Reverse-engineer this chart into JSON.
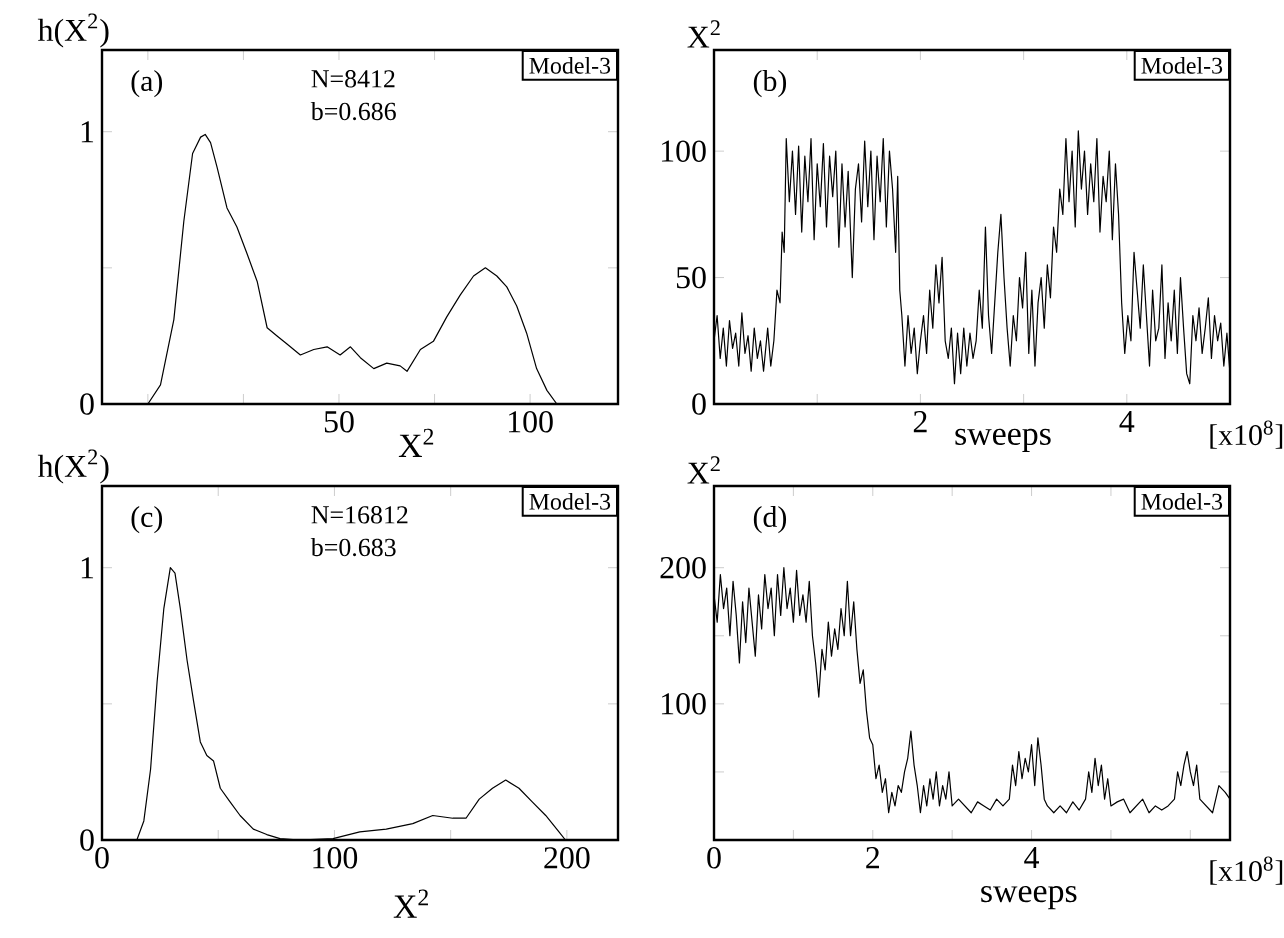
{
  "chart_data": [
    {
      "type": "line",
      "ylabel": "h(X$^{2}$)",
      "xlabel": "X$^{2}$",
      "xlim": [
        -12,
        123
      ],
      "ylim": [
        0,
        1.3
      ],
      "xticks": [
        {
          "value": 0,
          "label": null
        },
        {
          "value": 25,
          "label": null
        },
        50,
        {
          "value": 75,
          "label": null
        },
        100
      ],
      "yticks": [
        0,
        {
          "value": 0.5,
          "label": null
        },
        1
      ],
      "annotations": [
        "(a)",
        "N=8412",
        "b=0.686",
        "Model-3"
      ],
      "series": [
        {
          "color": "#000000",
          "x": [
            0,
            3.3,
            6.8,
            9.4,
            11.7,
            13.8,
            15,
            16.4,
            18.1,
            20.7,
            23.3,
            26,
            28.6,
            31.2,
            33.8,
            36.4,
            39.9,
            43.4,
            46.9,
            50.3,
            53,
            55.6,
            59.1,
            62.5,
            66,
            67.8,
            71.3,
            74.7,
            78.2,
            81.7,
            85.2,
            88.3,
            91.3,
            93.9,
            96.5,
            99.1,
            101.7,
            104.4,
            107
          ],
          "values": [
            0,
            0.07,
            0.31,
            0.67,
            0.92,
            0.98,
            0.99,
            0.96,
            0.87,
            0.72,
            0.65,
            0.55,
            0.45,
            0.28,
            0.25,
            0.22,
            0.18,
            0.2,
            0.21,
            0.18,
            0.21,
            0.17,
            0.13,
            0.15,
            0.14,
            0.12,
            0.2,
            0.23,
            0.32,
            0.4,
            0.47,
            0.5,
            0.47,
            0.43,
            0.36,
            0.26,
            0.13,
            0.05,
            0
          ]
        }
      ]
    },
    {
      "type": "line",
      "ylabel": "X$^{2}$",
      "xlabel": "sweeps",
      "xlim": [
        0,
        5
      ],
      "ylim": [
        0,
        140
      ],
      "xticks": [
        {
          "value": 1,
          "label": null
        },
        2,
        {
          "value": 3,
          "label": null
        },
        4
      ],
      "yticks": [
        0,
        50,
        100
      ],
      "annotations": [
        "(b)",
        "Model-3",
        "[x10$^{8}$]"
      ],
      "series": [
        {
          "color": "#000000",
          "x": [
            0.0,
            0.03,
            0.06,
            0.09,
            0.12,
            0.15,
            0.18,
            0.21,
            0.24,
            0.27,
            0.3,
            0.33,
            0.36,
            0.39,
            0.42,
            0.45,
            0.48,
            0.52,
            0.55,
            0.58,
            0.61,
            0.64,
            0.66,
            0.68,
            0.7,
            0.73,
            0.76,
            0.79,
            0.82,
            0.85,
            0.88,
            0.91,
            0.94,
            0.97,
            1.0,
            1.03,
            1.06,
            1.09,
            1.12,
            1.15,
            1.18,
            1.21,
            1.24,
            1.27,
            1.3,
            1.34,
            1.37,
            1.4,
            1.43,
            1.46,
            1.49,
            1.52,
            1.55,
            1.58,
            1.61,
            1.64,
            1.67,
            1.7,
            1.73,
            1.76,
            1.78,
            1.8,
            1.82,
            1.85,
            1.88,
            1.91,
            1.94,
            1.97,
            2.0,
            2.03,
            2.06,
            2.09,
            2.12,
            2.15,
            2.18,
            2.21,
            2.24,
            2.27,
            2.3,
            2.33,
            2.36,
            2.39,
            2.42,
            2.45,
            2.48,
            2.51,
            2.54,
            2.57,
            2.6,
            2.63,
            2.66,
            2.69,
            2.72,
            2.75,
            2.78,
            2.81,
            2.84,
            2.87,
            2.9,
            2.93,
            2.96,
            2.99,
            3.02,
            3.05,
            3.08,
            3.11,
            3.14,
            3.17,
            3.2,
            3.23,
            3.26,
            3.29,
            3.32,
            3.35,
            3.38,
            3.41,
            3.44,
            3.47,
            3.5,
            3.53,
            3.56,
            3.59,
            3.62,
            3.65,
            3.68,
            3.71,
            3.74,
            3.77,
            3.8,
            3.83,
            3.86,
            3.89,
            3.92,
            3.95,
            3.98,
            4.01,
            4.04,
            4.07,
            4.1,
            4.13,
            4.16,
            4.19,
            4.22,
            4.25,
            4.28,
            4.31,
            4.34,
            4.37,
            4.4,
            4.43,
            4.46,
            4.49,
            4.52,
            4.55,
            4.58,
            4.61,
            4.64,
            4.67,
            4.7,
            4.73,
            4.76,
            4.79,
            4.82,
            4.85,
            4.88,
            4.91,
            4.94,
            4.97,
            5.0
          ],
          "values": [
            25,
            35,
            18,
            30,
            15,
            33,
            22,
            28,
            15,
            36,
            20,
            27,
            13,
            30,
            18,
            25,
            13,
            30,
            15,
            25,
            45,
            40,
            68,
            60,
            105,
            80,
            100,
            75,
            102,
            68,
            98,
            80,
            105,
            65,
            95,
            78,
            103,
            70,
            98,
            82,
            100,
            62,
            95,
            70,
            92,
            50,
            85,
            95,
            72,
            104,
            78,
            100,
            65,
            98,
            80,
            105,
            70,
            100,
            85,
            60,
            90,
            45,
            35,
            15,
            35,
            20,
            30,
            12,
            25,
            35,
            20,
            45,
            30,
            55,
            40,
            58,
            25,
            18,
            30,
            8,
            28,
            12,
            30,
            15,
            28,
            18,
            25,
            45,
            30,
            70,
            35,
            20,
            40,
            60,
            75,
            50,
            30,
            15,
            35,
            25,
            50,
            38,
            60,
            20,
            45,
            15,
            40,
            50,
            30,
            55,
            42,
            70,
            60,
            85,
            75,
            105,
            80,
            100,
            70,
            108,
            85,
            100,
            75,
            95,
            80,
            105,
            68,
            90,
            80,
            100,
            65,
            95,
            75,
            40,
            20,
            35,
            25,
            60,
            45,
            30,
            55,
            35,
            15,
            45,
            25,
            30,
            55,
            18,
            40,
            25,
            45,
            20,
            50,
            30,
            12,
            8,
            35,
            25,
            38,
            20,
            30,
            42,
            18,
            35,
            25,
            32,
            15,
            28,
            12
          ]
        }
      ]
    },
    {
      "type": "line",
      "ylabel": "h(X$^{2}$)",
      "xlabel": "X$^{2}$",
      "xlim": [
        0,
        222
      ],
      "ylim": [
        0,
        1.3
      ],
      "xticks": [
        0,
        {
          "value": 50,
          "label": null
        },
        100,
        {
          "value": 150,
          "label": null
        },
        200
      ],
      "yticks": [
        0,
        {
          "value": 0.5,
          "label": null
        },
        1
      ],
      "annotations": [
        "(c)",
        "N=16812",
        "b=0.683",
        "Model-3"
      ],
      "series": [
        {
          "color": "#000000",
          "x": [
            15,
            18,
            20.9,
            23.7,
            26.6,
            29.4,
            31.4,
            33.7,
            36.6,
            39.4,
            42.3,
            45.1,
            48,
            50.9,
            55.1,
            59.4,
            65.1,
            70.9,
            76.6,
            85,
            99.4,
            110.9,
            122.3,
            133.7,
            142.3,
            150.9,
            156.6,
            162.3,
            168,
            173.7,
            179.4,
            185.1,
            190.9,
            196.6,
            199.4
          ],
          "values": [
            0,
            0.07,
            0.26,
            0.58,
            0.85,
            1.0,
            0.98,
            0.85,
            0.66,
            0.51,
            0.36,
            0.31,
            0.29,
            0.19,
            0.14,
            0.09,
            0.04,
            0.02,
            0.005,
            0,
            0.005,
            0.03,
            0.04,
            0.06,
            0.09,
            0.08,
            0.08,
            0.15,
            0.19,
            0.22,
            0.19,
            0.14,
            0.09,
            0.03,
            0
          ]
        }
      ]
    },
    {
      "type": "line",
      "ylabel": "X$^{2}$",
      "xlabel": "sweeps",
      "xlim": [
        0,
        6.5
      ],
      "ylim": [
        0,
        260
      ],
      "xticks": [
        0,
        {
          "value": 1,
          "label": null
        },
        2,
        {
          "value": 3,
          "label": null
        },
        4,
        {
          "value": 5,
          "label": null
        },
        {
          "value": 6,
          "label": null
        }
      ],
      "yticks": [
        {
          "value": 50,
          "label": null
        },
        100,
        {
          "value": 150,
          "label": null
        },
        200
      ],
      "annotations": [
        "(d)",
        "Model-3",
        "[x10$^{8}$]"
      ],
      "series": [
        {
          "color": "#000000",
          "x": [
            0.0,
            0.04,
            0.08,
            0.12,
            0.16,
            0.2,
            0.24,
            0.28,
            0.32,
            0.36,
            0.4,
            0.44,
            0.48,
            0.52,
            0.56,
            0.6,
            0.64,
            0.68,
            0.72,
            0.76,
            0.8,
            0.84,
            0.88,
            0.92,
            0.96,
            1.0,
            1.04,
            1.08,
            1.12,
            1.16,
            1.2,
            1.24,
            1.28,
            1.32,
            1.36,
            1.4,
            1.44,
            1.48,
            1.52,
            1.56,
            1.6,
            1.64,
            1.68,
            1.72,
            1.76,
            1.8,
            1.84,
            1.88,
            1.92,
            1.96,
            2.0,
            2.04,
            2.08,
            2.12,
            2.16,
            2.2,
            2.24,
            2.28,
            2.32,
            2.36,
            2.4,
            2.44,
            2.48,
            2.52,
            2.56,
            2.6,
            2.64,
            2.68,
            2.72,
            2.76,
            2.8,
            2.84,
            2.88,
            2.92,
            2.96,
            3.0,
            3.08,
            3.16,
            3.24,
            3.32,
            3.4,
            3.48,
            3.56,
            3.64,
            3.72,
            3.76,
            3.8,
            3.84,
            3.88,
            3.92,
            3.96,
            4.0,
            4.04,
            4.08,
            4.12,
            4.16,
            4.2,
            4.28,
            4.36,
            4.44,
            4.52,
            4.6,
            4.68,
            4.72,
            4.76,
            4.8,
            4.84,
            4.88,
            4.92,
            4.96,
            5.0,
            5.08,
            5.16,
            5.24,
            5.32,
            5.4,
            5.48,
            5.56,
            5.64,
            5.72,
            5.8,
            5.84,
            5.88,
            5.92,
            5.96,
            6.0,
            6.04,
            6.08,
            6.12,
            6.2,
            6.28,
            6.36,
            6.44,
            6.5
          ],
          "values": [
            180,
            160,
            195,
            170,
            185,
            150,
            190,
            165,
            130,
            175,
            145,
            185,
            160,
            135,
            180,
            155,
            195,
            170,
            185,
            150,
            195,
            165,
            200,
            170,
            185,
            160,
            198,
            165,
            180,
            160,
            190,
            150,
            130,
            105,
            140,
            125,
            160,
            135,
            155,
            140,
            170,
            150,
            190,
            150,
            175,
            140,
            115,
            125,
            95,
            75,
            70,
            45,
            55,
            35,
            45,
            20,
            35,
            25,
            40,
            35,
            50,
            60,
            80,
            55,
            40,
            20,
            40,
            25,
            45,
            30,
            50,
            25,
            40,
            30,
            50,
            25,
            30,
            25,
            20,
            28,
            25,
            22,
            30,
            25,
            30,
            55,
            40,
            65,
            45,
            60,
            50,
            70,
            40,
            75,
            55,
            30,
            25,
            20,
            25,
            20,
            28,
            22,
            30,
            50,
            35,
            60,
            40,
            55,
            30,
            45,
            25,
            28,
            30,
            20,
            25,
            30,
            20,
            25,
            22,
            25,
            30,
            50,
            40,
            55,
            65,
            50,
            40,
            55,
            30,
            25,
            20,
            40,
            35,
            30
          ]
        }
      ]
    }
  ]
}
